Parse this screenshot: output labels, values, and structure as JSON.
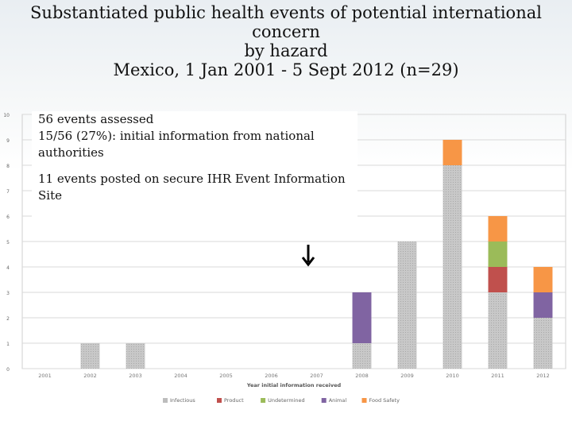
{
  "title": {
    "line1": "Substantiated public health events of potential international",
    "line2": "concern",
    "line3": "by hazard",
    "line4": "Mexico, 1 Jan 2001 - 5 Sept 2012 (n=29)"
  },
  "notes": {
    "line1": "56 events assessed",
    "line2": "15/56 (27%): initial information from national authorities",
    "line3": "11 events posted on secure IHR Event Information Site"
  },
  "arrow_icon": "down-arrow-icon",
  "chart_data": {
    "type": "bar",
    "stacked": true,
    "title": "",
    "xlabel": "Year initial information received",
    "ylabel": "",
    "ylim": [
      0,
      10
    ],
    "yticks": [
      0,
      1,
      2,
      3,
      4,
      5,
      6,
      7,
      8,
      9,
      10
    ],
    "grid": true,
    "legend_position": "bottom",
    "categories": [
      "2001",
      "2002",
      "2003",
      "2004",
      "2005",
      "2006",
      "2007",
      "2008",
      "2009",
      "2010",
      "2011",
      "2012"
    ],
    "series": [
      {
        "name": "Infectious",
        "color": "#bdbdbd",
        "values": [
          0,
          1,
          1,
          0,
          0,
          0,
          0,
          1,
          5,
          8,
          3,
          2
        ]
      },
      {
        "name": "Product",
        "color": "#c0504d",
        "values": [
          0,
          0,
          0,
          0,
          0,
          0,
          0,
          0,
          0,
          0,
          1,
          0
        ]
      },
      {
        "name": "Undetermined",
        "color": "#9bbb59",
        "values": [
          0,
          0,
          0,
          0,
          0,
          0,
          0,
          0,
          0,
          0,
          1,
          0
        ]
      },
      {
        "name": "Animal",
        "color": "#8064a2",
        "values": [
          0,
          0,
          0,
          0,
          0,
          0,
          0,
          2,
          0,
          0,
          0,
          1
        ]
      },
      {
        "name": "Food Safety",
        "color": "#f79646",
        "values": [
          0,
          0,
          0,
          0,
          0,
          0,
          0,
          0,
          0,
          1,
          1,
          1
        ]
      }
    ]
  }
}
